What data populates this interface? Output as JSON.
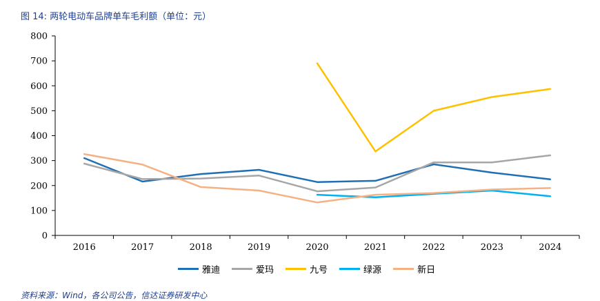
{
  "figure": {
    "title": "图 14:  两轮电动车品牌单车毛利额（单位：元）",
    "source": "资料来源：Wind，各公司公告，信达证券研发中心"
  },
  "chart_data": {
    "type": "line",
    "categories": [
      "2016",
      "2017",
      "2018",
      "2019",
      "2020",
      "2021",
      "2022",
      "2023",
      "2024"
    ],
    "ylim": [
      0,
      800
    ],
    "yticks": [
      0,
      100,
      200,
      300,
      400,
      500,
      600,
      700,
      800
    ],
    "xlabel": "",
    "ylabel": "",
    "legend_position": "bottom",
    "series": [
      {
        "name": "雅迪",
        "color": "#1f6fb5",
        "values": [
          310,
          216,
          246,
          263,
          214,
          219,
          285,
          252,
          225
        ]
      },
      {
        "name": "爱玛",
        "color": "#a6a6a6",
        "values": [
          288,
          226,
          228,
          240,
          177,
          192,
          293,
          293,
          321
        ]
      },
      {
        "name": "九号",
        "color": "#ffc000",
        "values": [
          null,
          null,
          null,
          null,
          690,
          337,
          500,
          555,
          587
        ]
      },
      {
        "name": "绿源",
        "color": "#00b0f0",
        "values": [
          null,
          null,
          null,
          null,
          163,
          153,
          167,
          180,
          157
        ]
      },
      {
        "name": "新日",
        "color": "#f4b183",
        "values": [
          326,
          284,
          194,
          180,
          132,
          163,
          170,
          184,
          190
        ]
      }
    ]
  }
}
